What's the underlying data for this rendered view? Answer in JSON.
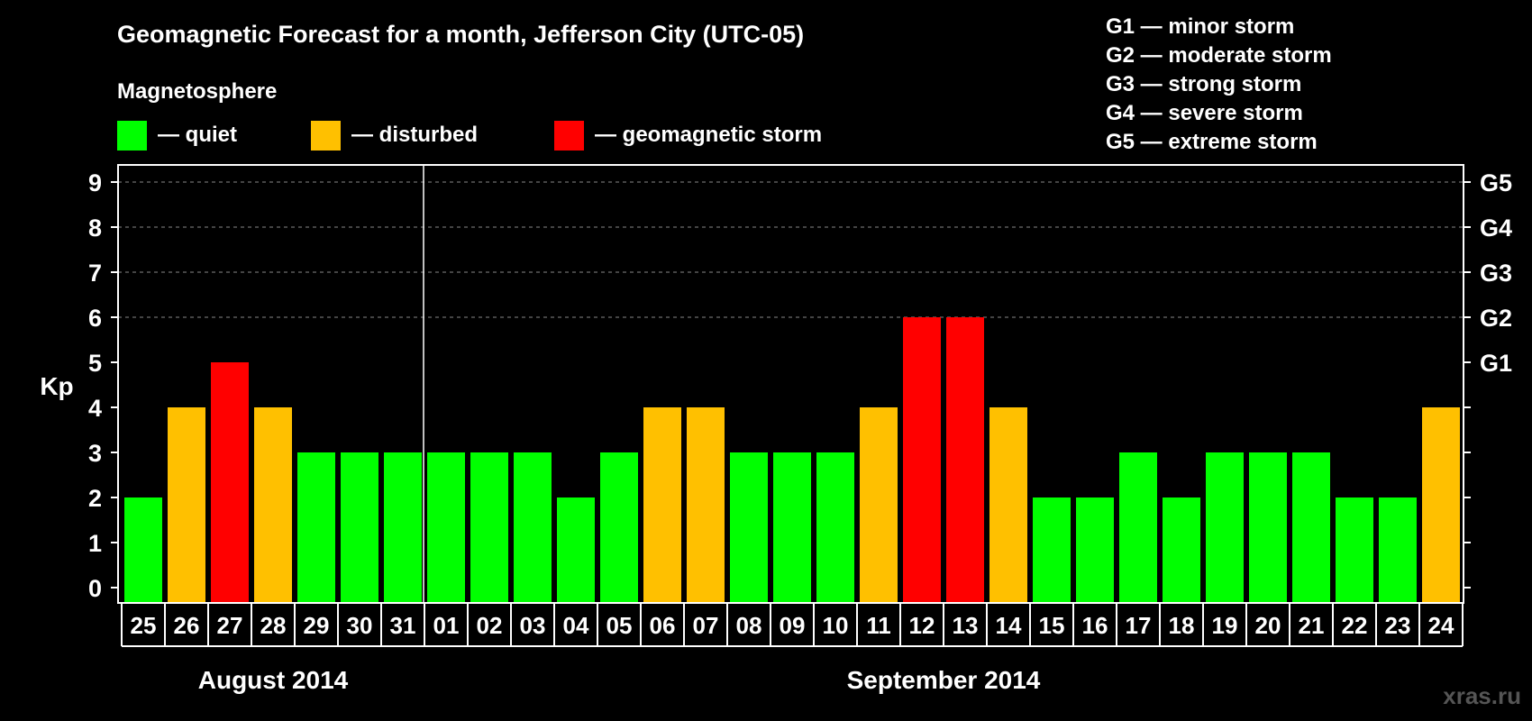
{
  "chart_data": {
    "type": "bar",
    "title": "Geomagnetic Forecast for a month, Jefferson City (UTC-05)",
    "subtitle": "Magnetosphere",
    "ylabel": "Kp",
    "ylim": [
      0,
      9
    ],
    "yticks": [
      "0",
      "1",
      "2",
      "3",
      "4",
      "5",
      "6",
      "7",
      "8",
      "9"
    ],
    "grid_levels": [
      6,
      7,
      8,
      9
    ],
    "storm_levels": [
      {
        "kp": 5,
        "label": "G1"
      },
      {
        "kp": 6,
        "label": "G2"
      },
      {
        "kp": 7,
        "label": "G3"
      },
      {
        "kp": 8,
        "label": "G4"
      },
      {
        "kp": 9,
        "label": "G5"
      }
    ],
    "legend": [
      {
        "key": "quiet",
        "label": "— quiet",
        "color": "#00ff00"
      },
      {
        "key": "disturbed",
        "label": "— disturbed",
        "color": "#ffc000"
      },
      {
        "key": "storm",
        "label": "— geomagnetic storm",
        "color": "#ff0000"
      }
    ],
    "storm_scale": [
      "G1 — minor storm",
      "G2 — moderate storm",
      "G3 — strong storm",
      "G4 — severe storm",
      "G5 — extreme storm"
    ],
    "categories": [
      "25",
      "26",
      "27",
      "28",
      "29",
      "30",
      "31",
      "01",
      "02",
      "03",
      "04",
      "05",
      "06",
      "07",
      "08",
      "09",
      "10",
      "11",
      "12",
      "13",
      "14",
      "15",
      "16",
      "17",
      "18",
      "19",
      "20",
      "21",
      "22",
      "23",
      "24"
    ],
    "values": [
      2,
      4,
      5,
      4,
      3,
      3,
      3,
      3,
      3,
      3,
      2,
      3,
      4,
      4,
      3,
      3,
      3,
      4,
      6,
      6,
      4,
      2,
      2,
      3,
      2,
      3,
      3,
      3,
      2,
      2,
      4
    ],
    "month_separator_after": 6,
    "months": [
      {
        "label": "August 2014",
        "start": 0,
        "end": 6
      },
      {
        "label": "September 2014",
        "start": 7,
        "end": 30
      }
    ],
    "colors": {
      "quiet": "#00ff00",
      "disturbed": "#ffc000",
      "storm": "#ff0000",
      "background": "#000000",
      "foreground": "#ffffff",
      "grid": "#888888",
      "watermark": "#555555"
    }
  },
  "watermark": "xras.ru"
}
